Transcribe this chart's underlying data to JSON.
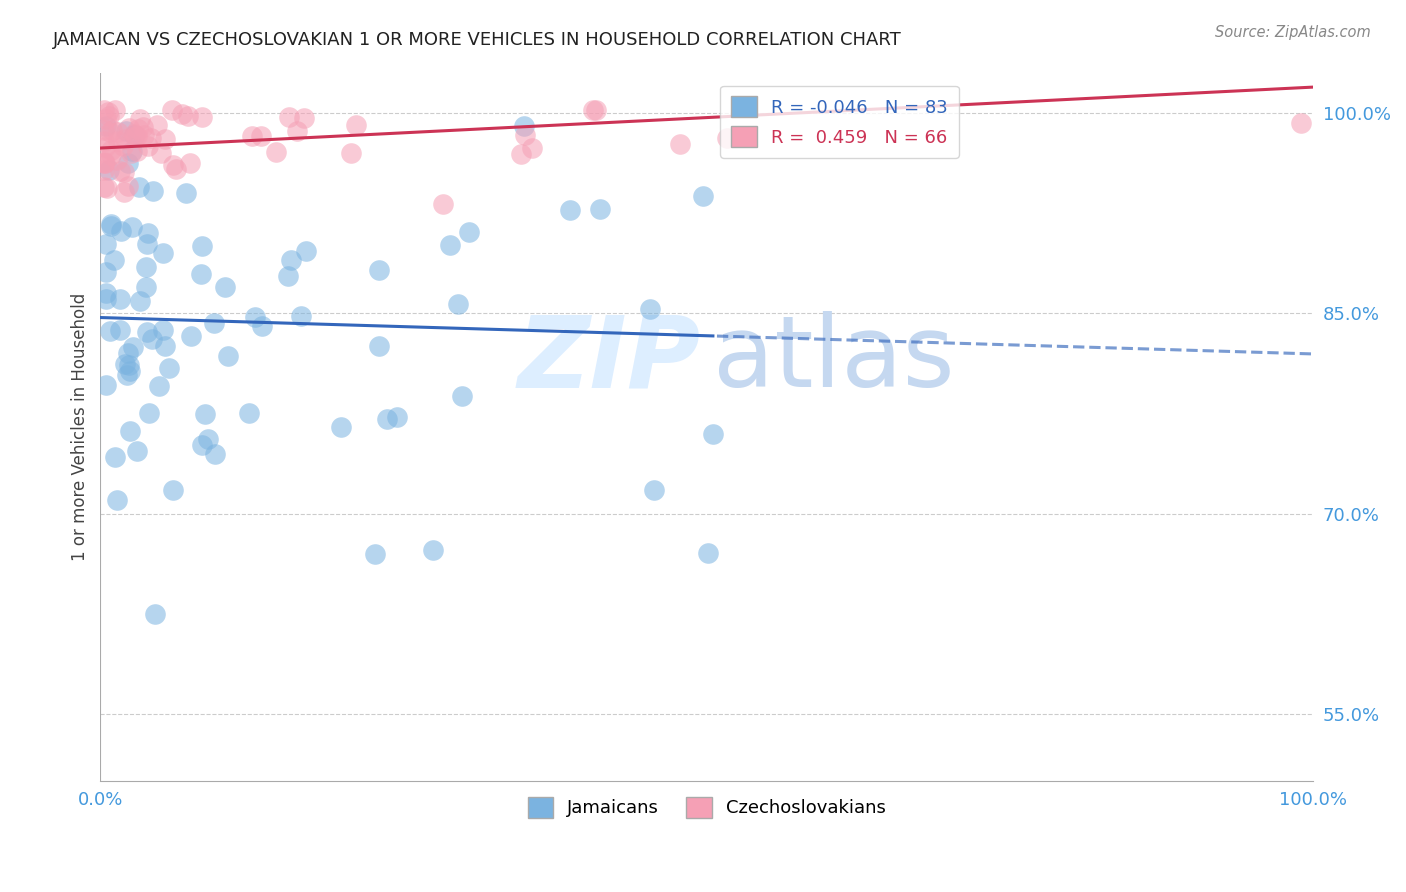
{
  "title": "JAMAICAN VS CZECHOSLOVAKIAN 1 OR MORE VEHICLES IN HOUSEHOLD CORRELATION CHART",
  "source": "Source: ZipAtlas.com",
  "ylabel": "1 or more Vehicles in Household",
  "ylim": [
    0.5,
    1.03
  ],
  "xlim": [
    0.0,
    1.0
  ],
  "yticks": [
    0.55,
    0.7,
    0.85,
    1.0
  ],
  "ytick_labels": [
    "55.0%",
    "70.0%",
    "85.0%",
    "100.0%"
  ],
  "legend_blue_r": "-0.046",
  "legend_blue_n": "83",
  "legend_pink_r": "0.459",
  "legend_pink_n": "66",
  "blue_color": "#7bb3e0",
  "pink_color": "#f5a0b5",
  "blue_line_color": "#3366bb",
  "pink_line_color": "#cc3355",
  "tick_color": "#4499dd",
  "grid_color": "#cccccc",
  "title_color": "#222222",
  "source_color": "#888888",
  "ylabel_color": "#444444",
  "background_color": "#ffffff",
  "watermark_zip_color": "#ddeeff",
  "watermark_atlas_color": "#c5d8f0"
}
